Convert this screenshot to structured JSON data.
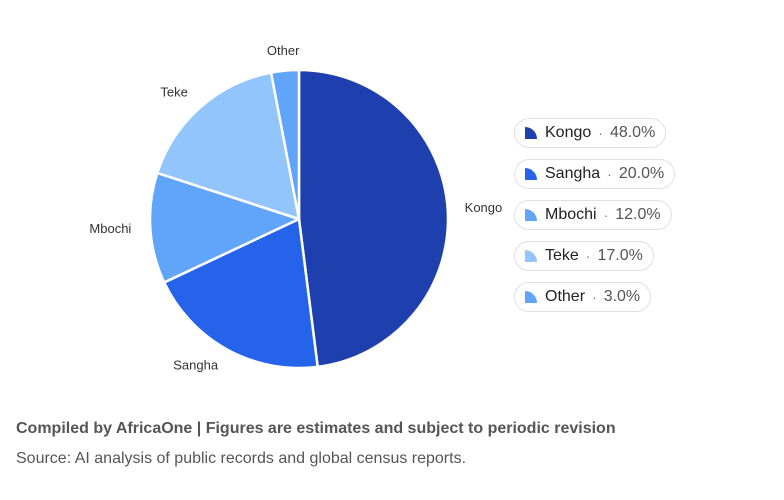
{
  "chart_data": {
    "type": "pie",
    "title": "",
    "slices": [
      {
        "label": "Kongo",
        "value": 48.0,
        "display": "48.0%",
        "color": "#1e40af"
      },
      {
        "label": "Sangha",
        "value": 20.0,
        "display": "20.0%",
        "color": "#2563eb"
      },
      {
        "label": "Mbochi",
        "value": 12.0,
        "display": "12.0%",
        "color": "#60a5fa"
      },
      {
        "label": "Teke",
        "value": 17.0,
        "display": "17.0%",
        "color": "#93c5fd"
      },
      {
        "label": "Other",
        "value": 3.0,
        "display": "3.0%",
        "color": "#60a5fa"
      }
    ],
    "legend_position": "right"
  },
  "footer": {
    "credit": "Compiled by AfricaOne | Figures are estimates and subject to periodic revision",
    "source": "Source: AI analysis of public records and global census reports."
  }
}
